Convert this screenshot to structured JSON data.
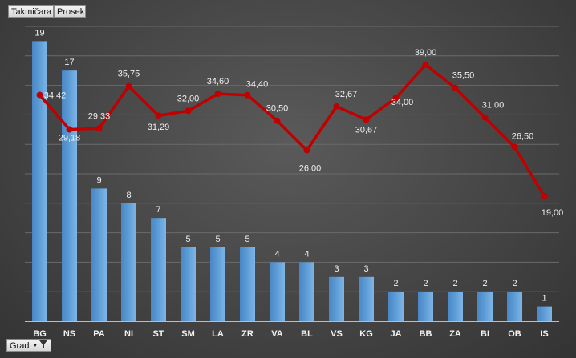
{
  "field_buttons": {
    "takmicara": "Takmičara",
    "prosek": "Prosek",
    "grad": "Grad",
    "grad_dropdown_icon": "dropdown-arrow-icon",
    "grad_filter_icon": "filter-icon"
  },
  "colors": {
    "bar": "#5b9bd5",
    "line": "#c00000",
    "label": "#f0f0f0",
    "grid": "#6a6a6a"
  },
  "chart_data": {
    "type": "bar",
    "categories": [
      "BG",
      "NS",
      "PA",
      "NI",
      "ST",
      "SM",
      "LA",
      "ZR",
      "VA",
      "BL",
      "VS",
      "KG",
      "JA",
      "BB",
      "ZA",
      "BI",
      "OB",
      "IS"
    ],
    "series": [
      {
        "name": "Takmičara",
        "type": "bar",
        "axis": "primary",
        "values": [
          19,
          17,
          9,
          8,
          7,
          5,
          5,
          5,
          4,
          4,
          3,
          3,
          2,
          2,
          2,
          2,
          2,
          1
        ],
        "labels": [
          "19",
          "17",
          "9",
          "8",
          "7",
          "5",
          "5",
          "5",
          "4",
          "4",
          "3",
          "3",
          "2",
          "2",
          "2",
          "2",
          "2",
          "1"
        ]
      },
      {
        "name": "Prosek",
        "type": "line",
        "axis": "secondary",
        "values": [
          34.42,
          29.18,
          29.33,
          35.75,
          31.29,
          32.0,
          34.6,
          34.4,
          30.5,
          26.0,
          32.67,
          30.67,
          34.0,
          39.0,
          35.5,
          31.0,
          26.5,
          19.0
        ],
        "labels": [
          "34,42",
          "29,18",
          "29,33",
          "35,75",
          "31,29",
          "32,00",
          "34,60",
          "34,40",
          "30,50",
          "26,00",
          "32,67",
          "30,67",
          "34,00",
          "39,00",
          "35,50",
          "31,00",
          "26,50",
          "19,00"
        ]
      }
    ],
    "ylim": [
      0,
      20
    ],
    "y2lim": [
      10,
      40
    ],
    "grid": true,
    "legend": "none"
  }
}
